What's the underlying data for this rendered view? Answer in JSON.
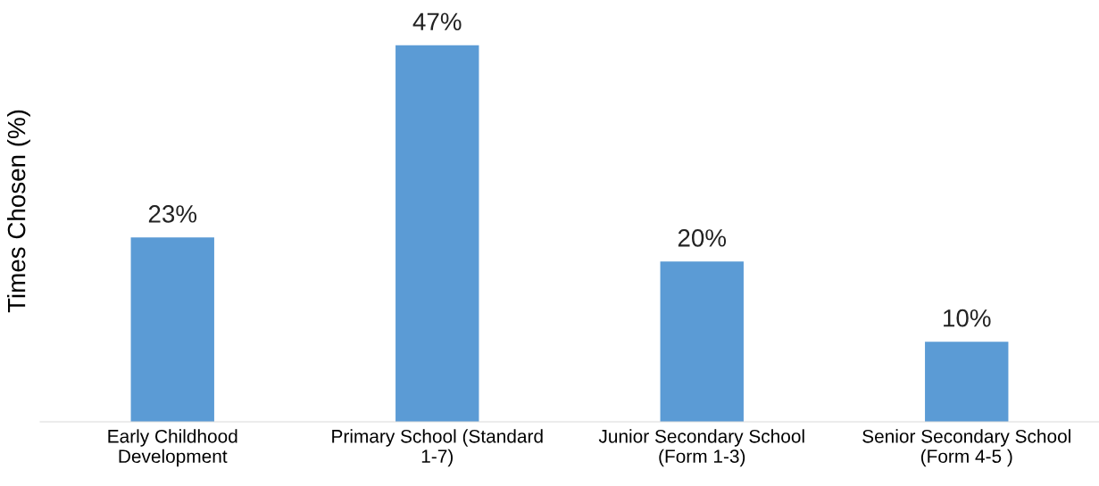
{
  "chart_data": {
    "type": "bar",
    "ylabel": "Times Chosen (%)",
    "categories": [
      "Early Childhood\nDevelopment",
      "Primary School (Standard\n1-7)",
      "Junior Secondary School\n(Form 1-3)",
      "Senior Secondary School\n(Form 4-5 )"
    ],
    "values": [
      23,
      47,
      20,
      10
    ],
    "value_labels": [
      "23%",
      "47%",
      "20%",
      "10%"
    ],
    "color": "#5b9bd5",
    "tick_labels": "x",
    "grid": false,
    "legend": false
  }
}
